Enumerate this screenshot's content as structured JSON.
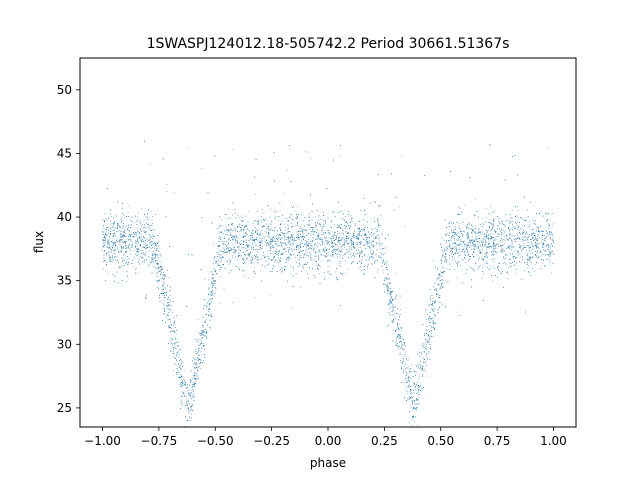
{
  "chart_data": {
    "type": "scatter",
    "title": "1SWASPJ124012.18-505742.2 Period 30661.51367s",
    "xlabel": "phase",
    "ylabel": "flux",
    "xlim": [
      -1.1,
      1.1
    ],
    "ylim": [
      23.5,
      52.5
    ],
    "x_ticks": [
      -1.0,
      -0.75,
      -0.5,
      -0.25,
      0.0,
      0.25,
      0.5,
      0.75,
      1.0
    ],
    "x_tick_labels": [
      "−1.00",
      "−0.75",
      "−0.50",
      "−0.25",
      "0.00",
      "0.25",
      "0.50",
      "0.75",
      "1.00"
    ],
    "y_ticks": [
      25,
      30,
      35,
      40,
      45,
      50
    ],
    "y_tick_labels": [
      "25",
      "30",
      "35",
      "40",
      "45",
      "50"
    ],
    "grid": false,
    "legend": "none",
    "point_color": "#1f77b4",
    "series": [
      {
        "baseline_flux": 38.0,
        "primary_eclipse": [
          {
            "x": -0.62,
            "y": 25.0
          },
          {
            "x": 0.38,
            "y": 25.0
          }
        ],
        "points": [
          {
            "x": -1.0,
            "y": 38.2
          },
          {
            "x": -0.9,
            "y": 38.0
          },
          {
            "x": -0.8,
            "y": 37.6
          },
          {
            "x": -0.75,
            "y": 35.0
          },
          {
            "x": -0.7,
            "y": 31.0
          },
          {
            "x": -0.65,
            "y": 27.0
          },
          {
            "x": -0.62,
            "y": 25.0
          },
          {
            "x": -0.58,
            "y": 27.5
          },
          {
            "x": -0.55,
            "y": 31.0
          },
          {
            "x": -0.5,
            "y": 35.0
          },
          {
            "x": -0.45,
            "y": 37.5
          },
          {
            "x": -0.3,
            "y": 38.0
          },
          {
            "x": -0.15,
            "y": 38.3
          },
          {
            "x": 0.0,
            "y": 38.0
          },
          {
            "x": 0.1,
            "y": 38.2
          },
          {
            "x": 0.2,
            "y": 37.8
          },
          {
            "x": 0.25,
            "y": 35.0
          },
          {
            "x": 0.3,
            "y": 31.0
          },
          {
            "x": 0.35,
            "y": 27.0
          },
          {
            "x": 0.38,
            "y": 25.0
          },
          {
            "x": 0.42,
            "y": 27.5
          },
          {
            "x": 0.45,
            "y": 31.0
          },
          {
            "x": 0.5,
            "y": 35.0
          },
          {
            "x": 0.55,
            "y": 37.5
          },
          {
            "x": 0.7,
            "y": 38.0
          },
          {
            "x": 0.85,
            "y": 38.3
          },
          {
            "x": 1.0,
            "y": 38.0
          }
        ]
      }
    ]
  }
}
